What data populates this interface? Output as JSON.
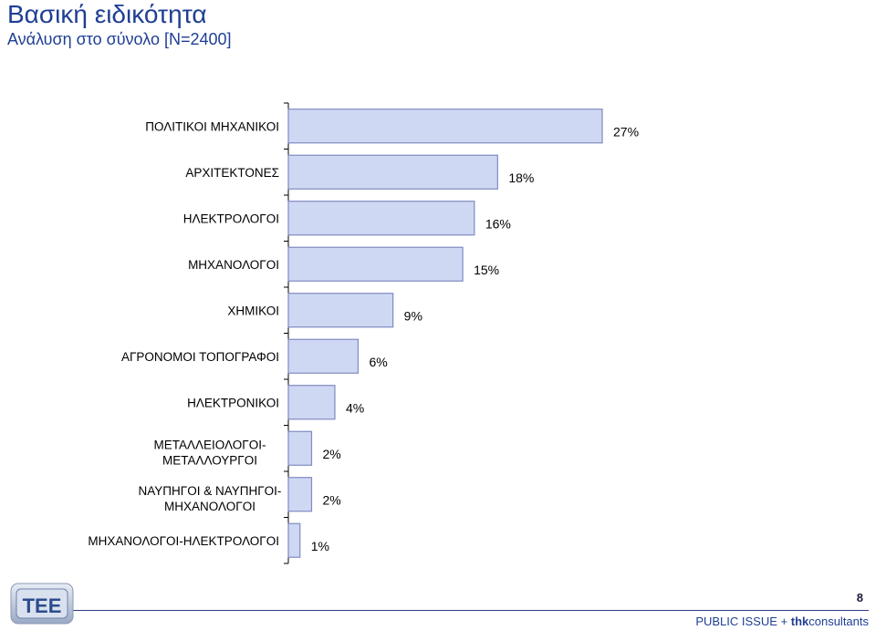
{
  "title": "Βασική ειδικότητα",
  "subtitle": "Ανάλυση στο σύνολο [N=2400]",
  "footer": {
    "page_number": "8",
    "left_text": "PUBLIC ISSUE + ",
    "bold_text": "thk",
    "right_text": "consultants",
    "logo_letters": "TEE"
  },
  "colors": {
    "title": "#1f3f94",
    "bar_fill": "#cfd8f3",
    "bar_stroke": "#7f8ac2"
  },
  "chart_data": {
    "type": "bar",
    "orientation": "horizontal",
    "categories": [
      [
        "ΠΟΛΙΤΙΚΟΙ ΜΗΧΑΝΙΚΟΙ"
      ],
      [
        "ΑΡΧΙΤΕΚΤΟΝΕΣ"
      ],
      [
        "ΗΛΕΚΤΡΟΛΟΓΟΙ"
      ],
      [
        "ΜΗΧΑΝΟΛΟΓΟΙ"
      ],
      [
        "ΧΗΜΙΚΟΙ"
      ],
      [
        "ΑΓΡΟΝΟΜΟΙ ΤΟΠΟΓΡΑΦΟΙ"
      ],
      [
        "ΗΛΕΚΤΡΟΝΙΚΟΙ"
      ],
      [
        "ΜΕΤΑΛΛΕΙΟΛΟΓΟΙ-",
        "ΜΕΤΑΛΛΟΥΡΓΟΙ"
      ],
      [
        "ΝΑΥΠΗΓΟΙ & ΝΑΥΠΗΓΟΙ-",
        "ΜΗΧΑΝΟΛΟΓΟΙ"
      ],
      [
        "ΜΗΧΑΝΟΛΟΓΟΙ-ΗΛΕΚΤΡΟΛΟΓΟΙ"
      ]
    ],
    "values": [
      27,
      18,
      16,
      15,
      9,
      6,
      4,
      2,
      2,
      1
    ],
    "value_labels": [
      "27%",
      "18%",
      "16%",
      "15%",
      "9%",
      "6%",
      "4%",
      "2%",
      "2%",
      "1%"
    ],
    "xlim": [
      0,
      27
    ],
    "grid": false,
    "legend": "none"
  }
}
